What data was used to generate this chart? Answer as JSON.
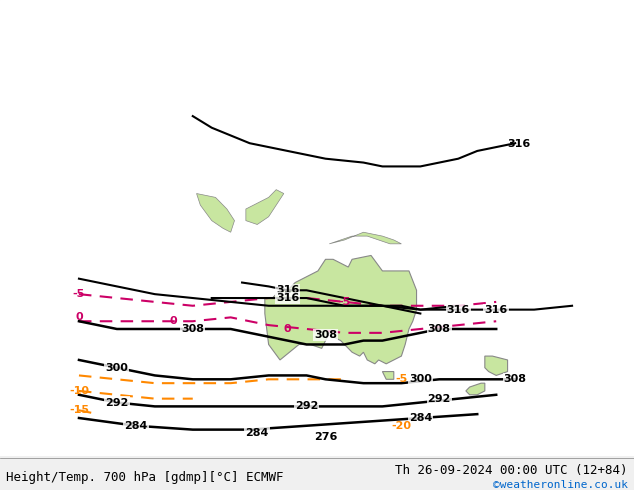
{
  "title_left": "Height/Temp. 700 hPa [gdmp][°C] ECMWF",
  "title_right": "Th 26-09-2024 00:00 UTC (12+84)",
  "credit": "©weatheronline.co.uk",
  "bg_color": "#f0f0f0",
  "map_bg": "#ffffff",
  "land_color": "#c8e6a0",
  "sea_color": "#ffffff",
  "figsize": [
    6.34,
    4.9
  ],
  "dpi": 100
}
